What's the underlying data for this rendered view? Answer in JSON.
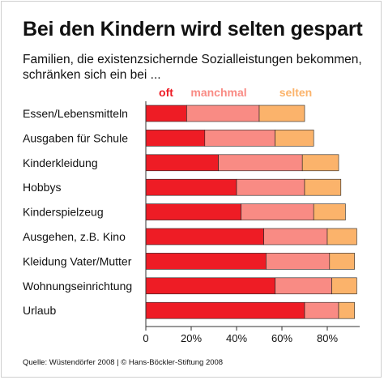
{
  "title": "Bei den Kindern wird selten gespart",
  "subtitle": "Familien, die existenzsichernde Sozialleistungen bekommen, schränken sich ein bei ...",
  "source": "Quelle: Wüstendörfer 2008 | © Hans-Böckler-Stiftung 2008",
  "colors": {
    "oft": "#ee1c25",
    "manchmal": "#f98b84",
    "selten": "#fbb36b"
  },
  "chart_data": {
    "type": "bar",
    "orientation": "horizontal",
    "stacked": true,
    "categories": [
      "Essen/Lebensmitteln",
      "Ausgaben für Schule",
      "Kinderkleidung",
      "Hobbys",
      "Kinderspielzeug",
      "Ausgehen, z.B. Kino",
      "Kleidung Vater/Mutter",
      "Wohnungseinrichtung",
      "Urlaub"
    ],
    "series": [
      {
        "name": "oft",
        "color": "#ee1c25",
        "values": [
          18,
          26,
          32,
          40,
          42,
          52,
          53,
          57,
          70
        ]
      },
      {
        "name": "manchmal",
        "color": "#f98b84",
        "values": [
          32,
          31,
          37,
          30,
          32,
          28,
          28,
          25,
          15
        ]
      },
      {
        "name": "selten",
        "color": "#fbb36b",
        "values": [
          20,
          17,
          16,
          16,
          14,
          13,
          11,
          11,
          7
        ]
      }
    ],
    "x_ticks": [
      "0",
      "20%",
      "40%",
      "60%",
      "80%"
    ],
    "xlim": [
      0,
      100
    ],
    "grid": false,
    "legend_position": "top"
  }
}
